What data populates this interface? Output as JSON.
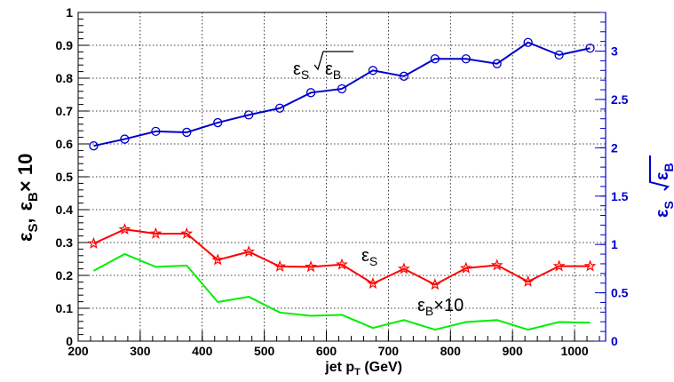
{
  "chart_data": {
    "type": "line",
    "xlabel": {
      "main": "jet p",
      "sub": "T",
      "unit": " (GeV)"
    },
    "ylabel_left": {
      "eps": "ε",
      "s": "S",
      "comma": ",",
      "eps2": "ε",
      "b": "B",
      "times": "× 10"
    },
    "ylabel_right": {
      "eps": "ε",
      "s": "S",
      "eps2": "ε",
      "b": "B"
    },
    "xlim": [
      200,
      1050
    ],
    "ylim_left": [
      0,
      1
    ],
    "ylim_right": [
      0,
      3.4
    ],
    "grid": true,
    "x_ticks": [
      200,
      300,
      400,
      500,
      600,
      700,
      800,
      900,
      1000
    ],
    "y_left_ticks": [
      0,
      0.1,
      0.2,
      0.3,
      0.4,
      0.5,
      0.6,
      0.7,
      0.8,
      0.9,
      1
    ],
    "y_left_tick_labels": [
      "0",
      "0.1",
      "0.2",
      "0.3",
      "0.4",
      "0.5",
      "0.6",
      "0.7",
      "0.8",
      "0.9",
      "1"
    ],
    "y_right_ticks": [
      0,
      0.5,
      1,
      1.5,
      2,
      2.5,
      3
    ],
    "y_right_tick_labels": [
      "0",
      "0.5",
      "1",
      "1.5",
      "2",
      "2.5",
      "3"
    ],
    "x": [
      225,
      275,
      325,
      375,
      425,
      475,
      525,
      575,
      625,
      675,
      725,
      775,
      825,
      875,
      925,
      975,
      1025
    ],
    "series": [
      {
        "key": "eps_s",
        "axis": "left",
        "color": "#ff0000",
        "marker": "star",
        "values": [
          0.297,
          0.34,
          0.327,
          0.327,
          0.247,
          0.272,
          0.227,
          0.226,
          0.233,
          0.175,
          0.22,
          0.172,
          0.222,
          0.231,
          0.181,
          0.228,
          0.228
        ]
      },
      {
        "key": "eps_b_x10",
        "axis": "left",
        "color": "#00ee00",
        "marker": "none",
        "values": [
          0.214,
          0.265,
          0.226,
          0.23,
          0.119,
          0.135,
          0.087,
          0.077,
          0.08,
          0.04,
          0.064,
          0.035,
          0.058,
          0.064,
          0.035,
          0.058,
          0.056
        ]
      },
      {
        "key": "eps_s_over_sqrt_eps_b",
        "axis": "right",
        "color": "#0000cc",
        "marker": "circle",
        "values": [
          2.02,
          2.09,
          2.17,
          2.16,
          2.26,
          2.34,
          2.41,
          2.57,
          2.61,
          2.8,
          2.74,
          2.92,
          2.92,
          2.87,
          3.09,
          2.96,
          3.03
        ]
      }
    ],
    "annotations": {
      "eps_s_label": {
        "eps": "ε",
        "sub": "S"
      },
      "eps_b_label": {
        "eps": "ε",
        "sub": "B",
        "suffix": "×10"
      },
      "ratio_label": {
        "eps": "ε",
        "sub": "S",
        "eps2": "ε",
        "sub2": "B"
      }
    }
  }
}
